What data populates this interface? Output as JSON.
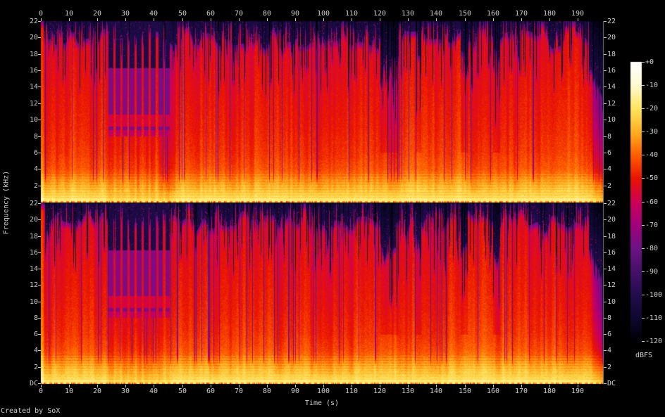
{
  "credit": "Created by SoX",
  "colors": {
    "background": "#000000",
    "text": "#cfcfcf",
    "tick": "#c8c8c8",
    "plot_frame": "#7d7d7d"
  },
  "axes": {
    "time": {
      "title": "Time (s)",
      "tick_values": [
        0,
        10,
        20,
        30,
        40,
        50,
        60,
        70,
        80,
        90,
        100,
        110,
        120,
        130,
        140,
        150,
        160,
        170,
        180,
        190
      ],
      "range_s": [
        0,
        199
      ]
    },
    "frequency": {
      "title": "Frequency (kHz)",
      "tick_values": [
        22,
        20,
        18,
        16,
        14,
        12,
        10,
        8,
        6,
        4,
        2
      ],
      "dc_label": "DC",
      "range_khz": [
        0,
        22
      ]
    },
    "colorbar": {
      "title": "dBFS",
      "tick_labels": [
        "+0",
        "-10",
        "-20",
        "-30",
        "-40",
        "-50",
        "-60",
        "-70",
        "-80",
        "-90",
        "-100",
        "-110",
        "-120"
      ]
    }
  },
  "chart_data": {
    "type": "heatmap",
    "subtype": "stereo-audio-spectrogram",
    "channels": 2,
    "x_axis": {
      "label": "Time (s)",
      "min": 0,
      "max": 199,
      "tick_step": 10
    },
    "y_axis": {
      "label": "Frequency (kHz)",
      "min": 0,
      "max": 22,
      "tick_step": 2,
      "origin_label": "DC"
    },
    "z_axis": {
      "label": "dBFS",
      "min": -120,
      "max": 0,
      "tick_step": 10
    },
    "palette": [
      {
        "db": 0,
        "color": "#ffffff"
      },
      {
        "db": -10,
        "color": "#fffbd0"
      },
      {
        "db": -20,
        "color": "#ffe55e"
      },
      {
        "db": -30,
        "color": "#ffb022"
      },
      {
        "db": -40,
        "color": "#ff5e00"
      },
      {
        "db": -50,
        "color": "#ea1400"
      },
      {
        "db": -60,
        "color": "#ce0059"
      },
      {
        "db": -70,
        "color": "#a2007e"
      },
      {
        "db": -80,
        "color": "#6f1387"
      },
      {
        "db": -90,
        "color": "#45106b"
      },
      {
        "db": -100,
        "color": "#250c4e"
      },
      {
        "db": -110,
        "color": "#0e0830"
      },
      {
        "db": -120,
        "color": "#000004"
      }
    ],
    "spectral_profile_db_by_khz": [
      [
        0,
        -14
      ],
      [
        0.6,
        -22
      ],
      [
        1.5,
        -27
      ],
      [
        2.5,
        -33
      ],
      [
        4,
        -42
      ],
      [
        6,
        -46
      ],
      [
        9,
        -49
      ],
      [
        16,
        -53
      ],
      [
        22,
        -57
      ]
    ],
    "segments": [
      {
        "t0": 0,
        "t1": 0.8,
        "kind": "burst",
        "cut_khz": 22
      },
      {
        "t0": 0.8,
        "t1": 23,
        "kind": "loud",
        "cut_khz": 19.6
      },
      {
        "t0": 23,
        "t1": 46.5,
        "kind": "quiet",
        "cut_khz": 16.3,
        "plateau_top_khz": 16.3,
        "plateau_bottom_khz": 8,
        "plateau_db": -76,
        "beat_period_s": 2.5,
        "beat_width_s": 0.9,
        "beat_cut_khz": 20
      },
      {
        "t0": 46.5,
        "t1": 120,
        "kind": "loud",
        "cut_khz": 19.9
      },
      {
        "t0": 120,
        "t1": 126.5,
        "kind": "notch",
        "cut_khz": 15.8
      },
      {
        "t0": 126.5,
        "t1": 132.5,
        "kind": "loud",
        "cut_khz": 19.5
      },
      {
        "t0": 132.5,
        "t1": 134.5,
        "kind": "notch",
        "cut_khz": 16.5
      },
      {
        "t0": 134.5,
        "t1": 148.5,
        "kind": "loud",
        "cut_khz": 19.9
      },
      {
        "t0": 148.5,
        "t1": 151,
        "kind": "notch",
        "cut_khz": 15.5
      },
      {
        "t0": 151,
        "t1": 160,
        "kind": "loud",
        "cut_khz": 19.7
      },
      {
        "t0": 160,
        "t1": 162.5,
        "kind": "notch",
        "cut_khz": 16.2
      },
      {
        "t0": 162.5,
        "t1": 194,
        "kind": "loud",
        "cut_khz": 19.9
      },
      {
        "t0": 194,
        "t1": 199,
        "kind": "fade",
        "cut_khz": 16.5
      }
    ],
    "quiet_section_bands_khz": [
      {
        "f0": 9.2,
        "f1": 10.7,
        "db": -58
      },
      {
        "f0": 8.0,
        "f1": 8.8,
        "db": -63
      }
    ]
  }
}
